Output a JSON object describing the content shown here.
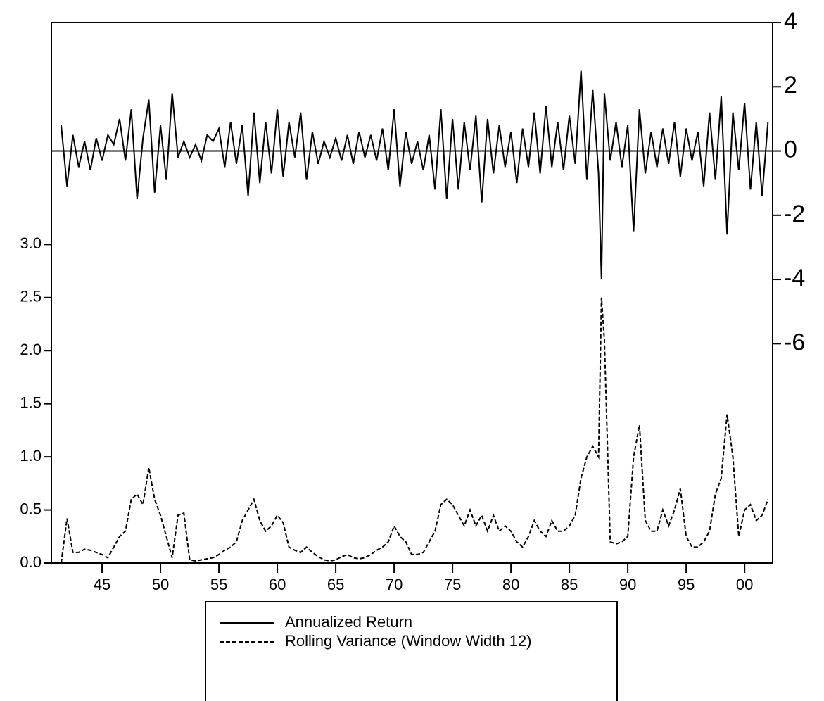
{
  "chart_data": {
    "type": "line",
    "x": [
      1941.5,
      1942,
      1942.5,
      1943,
      1943.5,
      1944,
      1944.5,
      1945,
      1945.5,
      1946,
      1946.5,
      1947,
      1947.5,
      1948,
      1948.5,
      1949,
      1949.5,
      1950,
      1950.5,
      1951,
      1951.5,
      1952,
      1952.5,
      1953,
      1953.5,
      1954,
      1954.5,
      1955,
      1955.5,
      1956,
      1956.5,
      1957,
      1957.5,
      1958,
      1958.5,
      1959,
      1959.5,
      1960,
      1960.5,
      1961,
      1961.5,
      1962,
      1962.5,
      1963,
      1963.5,
      1964,
      1964.5,
      1965,
      1965.5,
      1966,
      1966.5,
      1967,
      1967.5,
      1968,
      1968.5,
      1969,
      1969.5,
      1970,
      1970.5,
      1971,
      1971.5,
      1972,
      1972.5,
      1973,
      1973.5,
      1974,
      1974.5,
      1975,
      1975.5,
      1976,
      1976.5,
      1977,
      1977.5,
      1978,
      1978.5,
      1979,
      1979.5,
      1980,
      1980.5,
      1981,
      1981.5,
      1982,
      1982.5,
      1983,
      1983.5,
      1984,
      1984.5,
      1985,
      1985.5,
      1986,
      1986.5,
      1987,
      1987.5,
      1987.75,
      1988,
      1988.5,
      1989,
      1989.5,
      1990,
      1990.5,
      1991,
      1991.5,
      1992,
      1992.5,
      1993,
      1993.5,
      1994,
      1994.5,
      1995,
      1995.5,
      1996,
      1996.5,
      1997,
      1997.5,
      1998,
      1998.5,
      1999,
      1999.5,
      2000,
      2000.5,
      2001,
      2001.5,
      2002
    ],
    "series": [
      {
        "name": "Annualized Return",
        "color": "#000000",
        "line_style": "solid",
        "axis": "y2",
        "values": [
          0.8,
          -1.1,
          0.5,
          -0.5,
          0.3,
          -0.6,
          0.4,
          -0.3,
          0.5,
          0.2,
          1.0,
          -0.3,
          1.3,
          -1.5,
          0.4,
          1.6,
          -1.3,
          0.8,
          -0.9,
          1.8,
          -0.2,
          0.3,
          -0.2,
          0.2,
          -0.3,
          0.5,
          0.3,
          0.7,
          -0.5,
          0.9,
          -0.4,
          0.8,
          -1.4,
          1.2,
          -1.0,
          0.9,
          -0.7,
          1.3,
          -0.8,
          0.9,
          -0.2,
          1.2,
          -0.9,
          0.6,
          -0.4,
          0.3,
          -0.2,
          0.4,
          -0.3,
          0.5,
          -0.4,
          0.6,
          -0.2,
          0.5,
          -0.3,
          0.7,
          -0.6,
          1.3,
          -1.1,
          0.6,
          -0.4,
          0.3,
          -0.6,
          0.5,
          -1.2,
          1.3,
          -1.5,
          1.0,
          -1.2,
          0.9,
          -0.6,
          1.1,
          -1.6,
          1.0,
          -0.7,
          0.8,
          -0.5,
          0.6,
          -1.0,
          0.7,
          -0.5,
          1.2,
          -0.7,
          1.4,
          -0.5,
          0.9,
          -0.6,
          1.1,
          -0.4,
          2.5,
          -0.9,
          1.9,
          -0.7,
          -4.0,
          1.8,
          -0.3,
          0.9,
          -0.5,
          0.8,
          -2.5,
          1.3,
          -0.7,
          0.6,
          -0.5,
          0.7,
          -0.4,
          0.9,
          -0.8,
          0.7,
          -0.3,
          0.6,
          -1.1,
          1.2,
          -0.9,
          1.7,
          -2.6,
          1.2,
          -0.6,
          1.5,
          -1.2,
          0.9,
          -1.4,
          0.9
        ]
      },
      {
        "name": "Rolling Variance (Window Width 12)",
        "color": "#000000",
        "line_style": "dashed",
        "values": [
          0.0,
          0.42,
          0.1,
          0.1,
          0.13,
          0.12,
          0.1,
          0.08,
          0.05,
          0.15,
          0.25,
          0.3,
          0.6,
          0.65,
          0.55,
          0.9,
          0.6,
          0.45,
          0.25,
          0.05,
          0.45,
          0.47,
          0.03,
          0.02,
          0.03,
          0.04,
          0.05,
          0.08,
          0.12,
          0.15,
          0.2,
          0.4,
          0.5,
          0.6,
          0.4,
          0.3,
          0.35,
          0.45,
          0.38,
          0.15,
          0.12,
          0.1,
          0.15,
          0.1,
          0.06,
          0.03,
          0.02,
          0.03,
          0.06,
          0.08,
          0.05,
          0.04,
          0.05,
          0.08,
          0.12,
          0.15,
          0.2,
          0.35,
          0.25,
          0.2,
          0.08,
          0.08,
          0.1,
          0.2,
          0.3,
          0.55,
          0.6,
          0.55,
          0.45,
          0.35,
          0.5,
          0.35,
          0.45,
          0.3,
          0.45,
          0.3,
          0.35,
          0.3,
          0.2,
          0.15,
          0.25,
          0.4,
          0.3,
          0.25,
          0.4,
          0.3,
          0.3,
          0.35,
          0.45,
          0.8,
          1.0,
          1.1,
          1.0,
          2.5,
          2.1,
          0.2,
          0.18,
          0.2,
          0.25,
          1.0,
          1.3,
          0.4,
          0.3,
          0.3,
          0.5,
          0.35,
          0.5,
          0.7,
          0.25,
          0.15,
          0.15,
          0.2,
          0.3,
          0.65,
          0.8,
          1.4,
          1.0,
          0.25,
          0.5,
          0.55,
          0.4,
          0.45,
          0.6
        ]
      }
    ],
    "xlim": [
      1940.66,
      2002.4
    ],
    "xticks": [
      {
        "value": 1945,
        "label": "45"
      },
      {
        "value": 1950,
        "label": "50"
      },
      {
        "value": 1955,
        "label": "55"
      },
      {
        "value": 1960,
        "label": "60"
      },
      {
        "value": 1965,
        "label": "65"
      },
      {
        "value": 1970,
        "label": "70"
      },
      {
        "value": 1975,
        "label": "75"
      },
      {
        "value": 1980,
        "label": "80"
      },
      {
        "value": 1985,
        "label": "85"
      },
      {
        "value": 1990,
        "label": "90"
      },
      {
        "value": 1995,
        "label": "95"
      },
      {
        "value": 2000,
        "label": "00"
      }
    ],
    "ylim": [
      0,
      5.09
    ],
    "yticks": [
      {
        "value": 0,
        "label": "0.0"
      },
      0.5,
      {
        "value": 1,
        "label": "1.0"
      },
      1.5,
      {
        "value": 2,
        "label": "2.0"
      },
      2.5,
      {
        "value": 3,
        "label": "3.0"
      }
    ],
    "y2lim": [
      -12.83,
      4
    ],
    "y2ticks": [
      4,
      2,
      0,
      -2,
      -4,
      -6
    ],
    "zero_line": true,
    "legend": "bottom"
  }
}
